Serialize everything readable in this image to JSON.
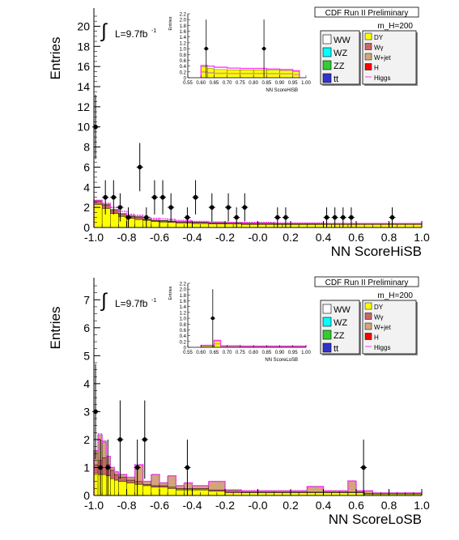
{
  "chart_data": [
    {
      "type": "bar",
      "panel": "top",
      "header": "CDF Run II Preliminary",
      "mass_label": "m_H=200",
      "ylabel": "Entries",
      "xlabel": "NN ScoreHiSB",
      "ylim": [
        0,
        21
      ],
      "xlim": [
        -1.0,
        1.0
      ],
      "yticks": [
        "0",
        "2",
        "4",
        "6",
        "8",
        "10",
        "12",
        "14",
        "16",
        "18",
        "20"
      ],
      "xticks": [
        "-1.0",
        "-0.8",
        "-0.6",
        "-0.4",
        "-0.2",
        "-0.0",
        "0.2",
        "0.4",
        "0.6",
        "0.8",
        "1.0"
      ],
      "lumi": "L=9.7fb",
      "lumi_sup": "-1",
      "legend_left": [
        "WW",
        "WZ",
        "ZZ",
        "tt"
      ],
      "legend_right": [
        "DY",
        "Wγ",
        "W+jet",
        "H",
        "Higgs"
      ],
      "colors": {
        "DY": "#ffff00",
        "Wg": "#cc6666",
        "Wjet": "#d2a679",
        "higgs": "#ff33ff",
        "data": "#000000"
      },
      "bin_edges": [
        -1.0,
        -0.95,
        -0.9,
        -0.85,
        -0.8,
        -0.75,
        -0.7,
        -0.65,
        -0.6,
        -0.55,
        -0.5,
        -0.4,
        -0.3,
        -0.2,
        -0.1,
        0.0,
        0.1,
        0.2,
        0.3,
        0.4,
        0.5,
        0.6,
        0.7,
        0.8,
        0.9,
        1.0
      ],
      "bkg_DY": [
        2.3,
        1.9,
        1.4,
        1.1,
        0.9,
        0.8,
        0.7,
        0.6,
        0.55,
        0.5,
        0.45,
        0.4,
        0.35,
        0.35,
        0.3,
        0.3,
        0.3,
        0.3,
        0.3,
        0.3,
        0.3,
        0.3,
        0.3,
        0.3,
        0.3
      ],
      "bkg_Wg": [
        0.3,
        0.3,
        0.3,
        0.2,
        0.2,
        0.2,
        0.1,
        0.1,
        0.1,
        0.1,
        0.1,
        0.1,
        0.1,
        0.1,
        0.1,
        0.1,
        0.05,
        0.05,
        0.05,
        0.05,
        0.05,
        0.05,
        0.05,
        0.05,
        0.05
      ],
      "bkg_Wjet": [
        0.1,
        0.1,
        0.1,
        0.1,
        0.1,
        0.1,
        0.05,
        0.05,
        0.05,
        0.05,
        0.05,
        0.05,
        0.05,
        0.05,
        0.05,
        0.05,
        0.05,
        0.05,
        0.05,
        0.05,
        0.05,
        0.05,
        0.05,
        0.05,
        0.05
      ],
      "higgs": [
        2.7,
        2.4,
        2.0,
        1.6,
        1.3,
        1.2,
        1.0,
        0.9,
        0.85,
        0.8,
        0.7,
        0.6,
        0.55,
        0.5,
        0.5,
        0.5,
        0.45,
        0.45,
        0.45,
        0.4,
        0.4,
        0.4,
        0.4,
        0.4,
        0.4
      ],
      "data_points": [
        {
          "x": -0.99,
          "y": 10,
          "err": 3.2
        },
        {
          "x": -0.93,
          "y": 3,
          "err": 1.7
        },
        {
          "x": -0.88,
          "y": 3,
          "err": 1.7
        },
        {
          "x": -0.84,
          "y": 2,
          "err": 1.4
        },
        {
          "x": -0.79,
          "y": 1,
          "err": 1.0
        },
        {
          "x": -0.72,
          "y": 6,
          "err": 2.4
        },
        {
          "x": -0.68,
          "y": 1,
          "err": 1.0
        },
        {
          "x": -0.63,
          "y": 3,
          "err": 1.7
        },
        {
          "x": -0.58,
          "y": 3,
          "err": 1.7
        },
        {
          "x": -0.53,
          "y": 2,
          "err": 1.4
        },
        {
          "x": -0.43,
          "y": 1,
          "err": 1.0
        },
        {
          "x": -0.38,
          "y": 3,
          "err": 1.7
        },
        {
          "x": -0.28,
          "y": 2,
          "err": 1.4
        },
        {
          "x": -0.18,
          "y": 2,
          "err": 1.4
        },
        {
          "x": -0.13,
          "y": 1,
          "err": 1.0
        },
        {
          "x": -0.08,
          "y": 2,
          "err": 1.4
        },
        {
          "x": 0.12,
          "y": 1,
          "err": 1.0
        },
        {
          "x": 0.17,
          "y": 1,
          "err": 1.0
        },
        {
          "x": 0.42,
          "y": 1,
          "err": 1.0
        },
        {
          "x": 0.47,
          "y": 1,
          "err": 1.0
        },
        {
          "x": 0.52,
          "y": 1,
          "err": 1.0
        },
        {
          "x": 0.57,
          "y": 1,
          "err": 1.0
        },
        {
          "x": 0.82,
          "y": 1,
          "err": 1.0
        }
      ],
      "inset": {
        "xlabel": "NN ScoreHiSB",
        "ylabel": "Entries",
        "xlim": [
          0.55,
          1.0
        ],
        "ylim": [
          0,
          2.2
        ],
        "xticks": [
          "0.55",
          "0.60",
          "0.65",
          "0.70",
          "0.75",
          "0.80",
          "0.85",
          "0.90",
          "0.95",
          "1.00"
        ],
        "yticks": [
          "0",
          "0.2",
          "0.4",
          "0.6",
          "0.8",
          "1.0",
          "1.2",
          "1.4",
          "1.6",
          "1.8",
          "2.0",
          "2.2"
        ],
        "bin_edges": [
          0.6,
          0.625,
          0.65,
          0.7,
          0.75,
          0.8,
          0.85,
          0.9,
          0.95,
          0.975
        ],
        "bkg": [
          0.38,
          0.32,
          0.28,
          0.27,
          0.27,
          0.27,
          0.26,
          0.25,
          0.2
        ],
        "higgs": [
          0.42,
          0.4,
          0.36,
          0.33,
          0.32,
          0.32,
          0.3,
          0.28,
          0.24
        ],
        "data_points": [
          {
            "x": 0.62,
            "y": 1,
            "err": 1.0
          },
          {
            "x": 0.84,
            "y": 1,
            "err": 1.0
          }
        ]
      }
    },
    {
      "type": "bar",
      "panel": "bottom",
      "header": "CDF Run II Preliminary",
      "mass_label": "m_H=200",
      "ylabel": "Entries",
      "xlabel": "NN ScoreLoSB",
      "ylim": [
        0,
        7.5
      ],
      "xlim": [
        -1.0,
        1.0
      ],
      "yticks": [
        "0",
        "1",
        "2",
        "3",
        "4",
        "5",
        "6",
        "7"
      ],
      "xticks": [
        "-1.0",
        "-0.8",
        "-0.6",
        "-0.4",
        "-0.2",
        "-0.0",
        "0.2",
        "0.4",
        "0.6",
        "0.8",
        "1.0"
      ],
      "lumi": "L=9.7fb",
      "lumi_sup": "-1",
      "legend_left": [
        "WW",
        "WZ",
        "ZZ",
        "tt"
      ],
      "legend_right": [
        "DY",
        "Wγ",
        "W+jet",
        "H",
        "Higgs"
      ],
      "colors": {
        "DY": "#ffff00",
        "Wg": "#cc6666",
        "Wjet": "#d2a679",
        "higgs": "#ff33ff",
        "data": "#000000"
      },
      "bin_edges": [
        -1.0,
        -0.975,
        -0.95,
        -0.925,
        -0.9,
        -0.875,
        -0.85,
        -0.8,
        -0.75,
        -0.7,
        -0.65,
        -0.6,
        -0.55,
        -0.5,
        -0.45,
        -0.4,
        -0.3,
        -0.2,
        -0.1,
        0.0,
        0.1,
        0.2,
        0.3,
        0.4,
        0.5,
        0.55,
        0.6,
        0.65,
        0.7,
        0.8,
        0.9,
        1.0
      ],
      "bkg_DY": [
        0.8,
        0.75,
        0.75,
        0.7,
        0.6,
        0.55,
        0.5,
        0.45,
        0.4,
        0.35,
        0.3,
        0.3,
        0.25,
        0.2,
        0.2,
        0.2,
        0.15,
        0.1,
        0.1,
        0.1,
        0.1,
        0.1,
        0.1,
        0.1,
        0.1,
        0.1,
        0.1,
        0.05,
        0.05,
        0.05,
        0.05
      ],
      "bkg_Wg": [
        0.3,
        0.5,
        0.6,
        0.4,
        0.3,
        0.2,
        0.15,
        0.1,
        0.1,
        0.05,
        0.05,
        0.05,
        0.05,
        0.05,
        0.05,
        0.05,
        0.05,
        0.05,
        0.02,
        0.02,
        0.02,
        0.02,
        0.02,
        0.02,
        0.02,
        0.02,
        0.02,
        0.02,
        0.02,
        0.02,
        0.02
      ],
      "bkg_Wjet": [
        0.5,
        0.9,
        0.6,
        0.3,
        0.1,
        0.1,
        0.1,
        0.1,
        0.6,
        0.1,
        0.4,
        0.1,
        0.4,
        0.1,
        0.2,
        0.1,
        0.3,
        0.05,
        0.05,
        0.05,
        0.05,
        0.05,
        0.2,
        0.05,
        0.05,
        0.4,
        0.05,
        0.1,
        0.02,
        0.02,
        0.02
      ],
      "higgs": [
        1.6,
        2.2,
        1.9,
        1.4,
        1.0,
        0.85,
        0.75,
        0.65,
        1.1,
        0.5,
        0.75,
        0.45,
        0.7,
        0.35,
        0.45,
        0.35,
        0.5,
        0.2,
        0.17,
        0.17,
        0.17,
        0.17,
        0.32,
        0.17,
        0.17,
        0.52,
        0.17,
        0.17,
        0.09,
        0.09,
        0.09
      ],
      "data_points": [
        {
          "x": -0.99,
          "y": 3,
          "err": 1.7
        },
        {
          "x": -0.96,
          "y": 1,
          "err": 1.0
        },
        {
          "x": -0.915,
          "y": 1,
          "err": 1.0
        },
        {
          "x": -0.84,
          "y": 2,
          "err": 1.4
        },
        {
          "x": -0.735,
          "y": 1,
          "err": 1.0
        },
        {
          "x": -0.69,
          "y": 2,
          "err": 1.4
        },
        {
          "x": -0.43,
          "y": 1,
          "err": 1.0
        },
        {
          "x": 0.645,
          "y": 1,
          "err": 1.0
        }
      ],
      "inset": {
        "xlabel": "NN ScoreLoSB",
        "ylabel": "Entries",
        "xlim": [
          0.55,
          1.0
        ],
        "ylim": [
          0,
          2.2
        ],
        "xticks": [
          "0.55",
          "0.60",
          "0.65",
          "0.70",
          "0.75",
          "0.80",
          "0.85",
          "0.90",
          "0.95",
          "1.00"
        ],
        "yticks": [
          "0",
          "0.2",
          "0.4",
          "0.6",
          "0.8",
          "1.0",
          "1.2",
          "1.4",
          "1.6",
          "1.8",
          "2.0",
          "2.2"
        ],
        "bin_edges": [
          0.6,
          0.65,
          0.675,
          0.7,
          0.75,
          0.8,
          0.85,
          0.9,
          0.95,
          1.0
        ],
        "bkg": [
          0.05,
          0.22,
          0.03,
          0.03,
          0.02,
          0.02,
          0.02,
          0.02,
          0.02
        ],
        "higgs": [
          0.07,
          0.24,
          0.05,
          0.05,
          0.04,
          0.04,
          0.04,
          0.04,
          0.04
        ],
        "data_points": [
          {
            "x": 0.645,
            "y": 1,
            "err": 1.0
          }
        ]
      }
    }
  ]
}
